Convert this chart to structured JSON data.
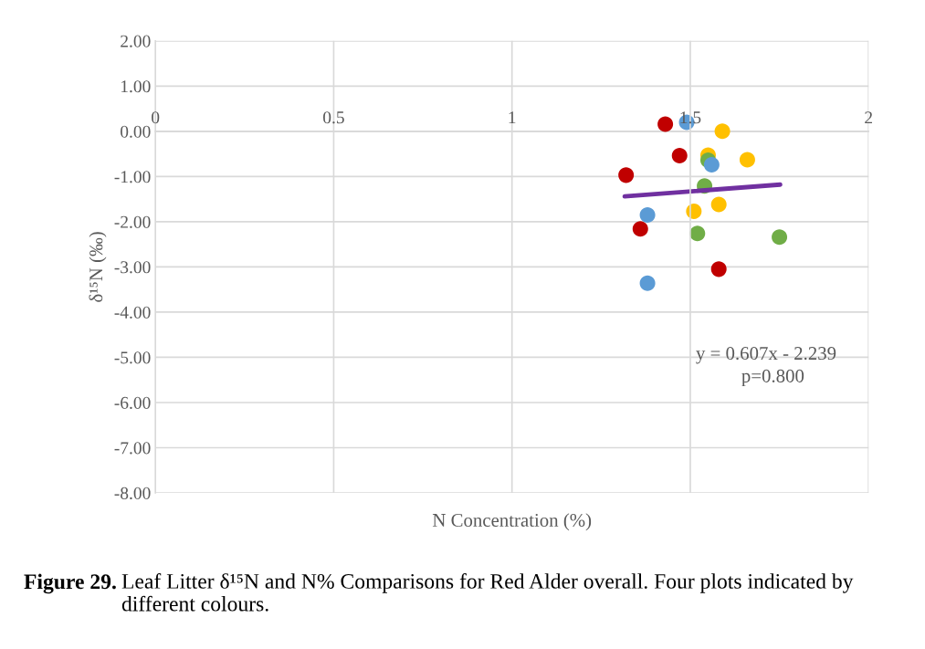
{
  "chart_data": {
    "type": "scatter",
    "xlabel": "N Concentration (%)",
    "ylabel": "δ¹⁵N (‰)",
    "xlim": [
      0,
      2
    ],
    "xticks": [
      0,
      0.5,
      1,
      1.5,
      2
    ],
    "ylim": [
      -8,
      2
    ],
    "yticks": [
      {
        "value": 2,
        "label": "2.00"
      },
      {
        "value": 1,
        "label": "1.00"
      },
      {
        "value": 0,
        "label": "0.00"
      },
      {
        "value": -1,
        "label": "-1.00"
      },
      {
        "value": -2,
        "label": "-2.00"
      },
      {
        "value": -3,
        "label": "-3.00"
      },
      {
        "value": -4,
        "label": "-4.00"
      },
      {
        "value": -5,
        "label": "-5.00"
      },
      {
        "value": -6,
        "label": "-6.00"
      },
      {
        "value": -7,
        "label": "-7.00"
      },
      {
        "value": -8,
        "label": "-8.00"
      }
    ],
    "grid": true,
    "legend": false,
    "marker": "circle",
    "series": [
      {
        "color": "#c00000",
        "x": [
          1.43,
          1.47,
          1.32,
          1.36,
          1.58
        ],
        "values": [
          0.16,
          -0.54,
          -0.97,
          -2.16,
          -3.05
        ]
      },
      {
        "color": "#ffc000",
        "x": [
          1.59,
          1.55,
          1.66,
          1.58,
          1.51
        ],
        "values": [
          0.0,
          -0.53,
          -0.63,
          -1.62,
          -1.77
        ]
      },
      {
        "color": "#70ad47",
        "x": [
          1.55,
          1.54,
          1.52,
          1.75
        ],
        "values": [
          -0.64,
          -1.21,
          -2.26,
          -2.34
        ]
      },
      {
        "color": "#5b9bd5",
        "x": [
          1.49,
          1.56,
          1.38,
          1.38
        ],
        "values": [
          0.2,
          -0.74,
          -1.85,
          -3.36
        ]
      },
      {
        "type": "line",
        "marker": "none",
        "color": "#7030a0",
        "x": [
          1.316,
          1.752
        ],
        "values": [
          -1.44,
          -1.18
        ]
      }
    ],
    "annotations": [
      "y = 0.607x - 2.239",
      "p=0.800",
      "Figure 29.",
      "Leaf Litter δ¹⁵N and N% Comparisons for Red Alder overall. Four plots indicated by different colours."
    ]
  }
}
